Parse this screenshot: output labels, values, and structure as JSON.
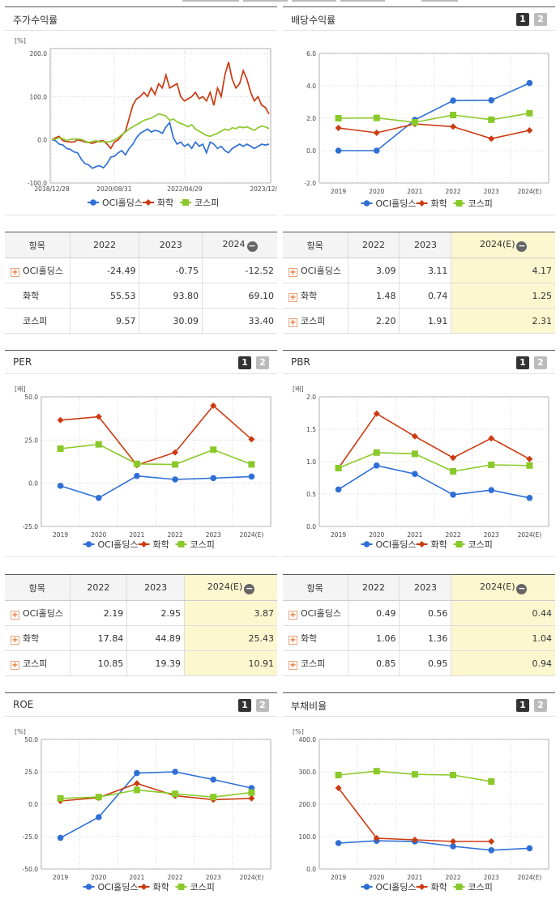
{
  "colors": {
    "oci": "#2e6fd6",
    "chem": "#cc3a10",
    "kospi": "#8ac929"
  },
  "panels": {
    "stock": {
      "title": "주가수익률",
      "unit": "[%]",
      "legend": [
        "OCI홀딩스",
        "화학",
        "코스피"
      ],
      "table": {
        "headers": [
          "항목",
          "2022",
          "2023",
          "2024"
        ],
        "rows": [
          {
            "name": "OCI홀딩스",
            "values": [
              "-24.49",
              "-0.75",
              "-12.52"
            ]
          },
          {
            "name": "화학",
            "values": [
              "55.53",
              "93.80",
              "69.10"
            ]
          },
          {
            "name": "코스피",
            "values": [
              "9.57",
              "30.09",
              "33.40"
            ]
          }
        ]
      }
    },
    "dividend": {
      "title": "배당수익률",
      "page1": "1",
      "page2": "2",
      "legend": [
        "OCI홀딩스",
        "화학",
        "코스피"
      ],
      "table": {
        "headers": [
          "항목",
          "2022",
          "2023",
          "2024(E)"
        ],
        "rows": [
          {
            "name": "OCI홀딩스",
            "values": [
              "3.09",
              "3.11",
              "4.17"
            ]
          },
          {
            "name": "화학",
            "values": [
              "1.48",
              "0.74",
              "1.25"
            ]
          },
          {
            "name": "코스피",
            "values": [
              "2.20",
              "1.91",
              "2.31"
            ]
          }
        ]
      }
    },
    "per": {
      "title": "PER",
      "page1": "1",
      "page2": "2",
      "unit": "[배]",
      "legend": [
        "OCI홀딩스",
        "화학",
        "코스피"
      ],
      "table": {
        "headers": [
          "항목",
          "2022",
          "2023",
          "2024(E)"
        ],
        "rows": [
          {
            "name": "OCI홀딩스",
            "values": [
              "2.19",
              "2.95",
              "3.87"
            ]
          },
          {
            "name": "화학",
            "values": [
              "17.84",
              "44.89",
              "25.43"
            ]
          },
          {
            "name": "코스피",
            "values": [
              "10.85",
              "19.39",
              "10.91"
            ]
          }
        ]
      }
    },
    "pbr": {
      "title": "PBR",
      "page1": "1",
      "page2": "2",
      "unit": "[배]",
      "legend": [
        "OCI홀딩스",
        "화학",
        "코스피"
      ],
      "table": {
        "headers": [
          "항목",
          "2022",
          "2023",
          "2024(E)"
        ],
        "rows": [
          {
            "name": "OCI홀딩스",
            "values": [
              "0.49",
              "0.56",
              "0.44"
            ]
          },
          {
            "name": "화학",
            "values": [
              "1.06",
              "1.36",
              "1.04"
            ]
          },
          {
            "name": "코스피",
            "values": [
              "0.85",
              "0.95",
              "0.94"
            ]
          }
        ]
      }
    },
    "roe": {
      "title": "ROE",
      "page1": "1",
      "page2": "2",
      "unit": "[%]",
      "legend": [
        "OCI홀딩스",
        "화학",
        "코스피"
      ]
    },
    "debt": {
      "title": "부채비율",
      "page1": "1",
      "page2": "2",
      "unit": "[%]",
      "legend": [
        "OCI홀딩스",
        "화학",
        "코스피"
      ]
    }
  },
  "chart_data": [
    {
      "id": "stock",
      "type": "line",
      "x_ticks": [
        "2018/12/28",
        "2020/08/31",
        "2022/04/29",
        "2023/12/28"
      ],
      "y_ticks": [
        "200.0",
        "100.0",
        "0.0",
        "-100.0"
      ],
      "ylim": [
        -100,
        200
      ],
      "series": [
        {
          "name": "OCI홀딩스",
          "values": [
            0,
            -2,
            -10,
            -12,
            -20,
            -22,
            -28,
            -30,
            -45,
            -55,
            -58,
            -66,
            -62,
            -60,
            -65,
            -55,
            -40,
            -38,
            -30,
            -25,
            -35,
            -20,
            -10,
            5,
            15,
            20,
            25,
            18,
            22,
            20,
            15,
            30,
            40,
            5,
            -10,
            -5,
            -15,
            -10,
            -20,
            -5,
            -15,
            -10,
            -30,
            -5,
            -10,
            -20,
            -15,
            -25,
            -30,
            -20,
            -15,
            -10,
            -15,
            -10,
            -15,
            -20,
            -15,
            -10,
            -12,
            -10
          ]
        },
        {
          "name": "화학",
          "values": [
            0,
            5,
            8,
            -2,
            -4,
            -5,
            -5,
            0,
            -2,
            -5,
            -6,
            -8,
            -5,
            -3,
            -2,
            -10,
            -20,
            -5,
            0,
            10,
            20,
            50,
            80,
            95,
            100,
            110,
            100,
            120,
            105,
            130,
            120,
            150,
            120,
            125,
            130,
            100,
            90,
            95,
            100,
            110,
            95,
            100,
            90,
            110,
            80,
            120,
            100,
            150,
            180,
            140,
            120,
            130,
            160,
            140,
            110,
            90,
            100,
            80,
            75,
            60
          ]
        },
        {
          "name": "코스피",
          "values": [
            0,
            2,
            5,
            3,
            -2,
            1,
            2,
            2,
            1,
            -3,
            -6,
            -4,
            -2,
            -5,
            -4,
            -5,
            -4,
            0,
            5,
            12,
            18,
            25,
            30,
            35,
            40,
            45,
            48,
            50,
            55,
            60,
            58,
            55,
            45,
            48,
            42,
            38,
            35,
            30,
            35,
            25,
            20,
            15,
            10,
            8,
            12,
            15,
            20,
            25,
            22,
            28,
            26,
            30,
            28,
            30,
            26,
            22,
            28,
            32,
            30,
            26
          ]
        }
      ]
    },
    {
      "id": "dividend",
      "type": "line",
      "categories": [
        "2019",
        "2020",
        "2021",
        "2022",
        "2023",
        "2024(E)"
      ],
      "y_ticks": [
        "6.0",
        "4.0",
        "2.0",
        "0.0",
        "-2.0"
      ],
      "ylim": [
        -2,
        6
      ],
      "series": [
        {
          "name": "OCI홀딩스",
          "values": [
            0.0,
            0.0,
            1.9,
            3.09,
            3.11,
            4.17
          ]
        },
        {
          "name": "화학",
          "values": [
            1.4,
            1.1,
            1.65,
            1.48,
            0.74,
            1.25
          ]
        },
        {
          "name": "코스피",
          "values": [
            2.0,
            2.02,
            1.75,
            2.2,
            1.91,
            2.31
          ]
        }
      ]
    },
    {
      "id": "per",
      "type": "line",
      "categories": [
        "2019",
        "2020",
        "2021",
        "2022",
        "2023",
        "2024(E)"
      ],
      "y_ticks": [
        "50.0",
        "25.0",
        "0.0",
        "-25.0"
      ],
      "ylim": [
        -25,
        50
      ],
      "series": [
        {
          "name": "OCI홀딩스",
          "values": [
            -1.5,
            -8.5,
            4.2,
            2.19,
            2.95,
            3.87
          ]
        },
        {
          "name": "화학",
          "values": [
            36.5,
            38.5,
            10.5,
            17.84,
            44.89,
            25.43
          ]
        },
        {
          "name": "코스피",
          "values": [
            20.0,
            22.5,
            11.2,
            10.85,
            19.39,
            10.91
          ]
        }
      ]
    },
    {
      "id": "pbr",
      "type": "line",
      "categories": [
        "2019",
        "2020",
        "2021",
        "2022",
        "2023",
        "2024(E)"
      ],
      "y_ticks": [
        "2.0",
        "1.5",
        "1.0",
        "0.5",
        "0.0"
      ],
      "ylim": [
        0,
        2
      ],
      "series": [
        {
          "name": "OCI홀딩스",
          "values": [
            0.57,
            0.94,
            0.81,
            0.49,
            0.56,
            0.44
          ]
        },
        {
          "name": "화학",
          "values": [
            0.9,
            1.74,
            1.39,
            1.06,
            1.36,
            1.04
          ]
        },
        {
          "name": "코스피",
          "values": [
            0.9,
            1.14,
            1.12,
            0.85,
            0.95,
            0.94
          ]
        }
      ]
    },
    {
      "id": "roe",
      "type": "line",
      "categories": [
        "2019",
        "2020",
        "2021",
        "2022",
        "2023",
        "2024(E)"
      ],
      "y_ticks": [
        "50.0",
        "25.0",
        "0.0",
        "-25.0",
        "-50.0"
      ],
      "ylim": [
        -50,
        50
      ],
      "series": [
        {
          "name": "OCI홀딩스",
          "values": [
            -26,
            -10,
            24,
            25,
            19,
            12.5
          ]
        },
        {
          "name": "화학",
          "values": [
            2.5,
            5,
            16,
            6.5,
            3.5,
            4.5
          ]
        },
        {
          "name": "코스피",
          "values": [
            4.5,
            5.5,
            11,
            8,
            5.5,
            9
          ]
        }
      ]
    },
    {
      "id": "debt",
      "type": "line",
      "categories": [
        "2019",
        "2020",
        "2021",
        "2022",
        "2023",
        "2024(E)"
      ],
      "y_ticks": [
        "400.0",
        "300.0",
        "200.0",
        "100.0",
        "0.0"
      ],
      "ylim": [
        0,
        400
      ],
      "series": [
        {
          "name": "OCI홀딩스",
          "values": [
            80,
            87,
            85,
            70,
            58,
            64
          ]
        },
        {
          "name": "화학",
          "values": [
            250,
            95,
            90,
            85,
            85,
            null
          ]
        },
        {
          "name": "코스피",
          "values": [
            290,
            302,
            292,
            290,
            270,
            null
          ]
        }
      ]
    }
  ]
}
